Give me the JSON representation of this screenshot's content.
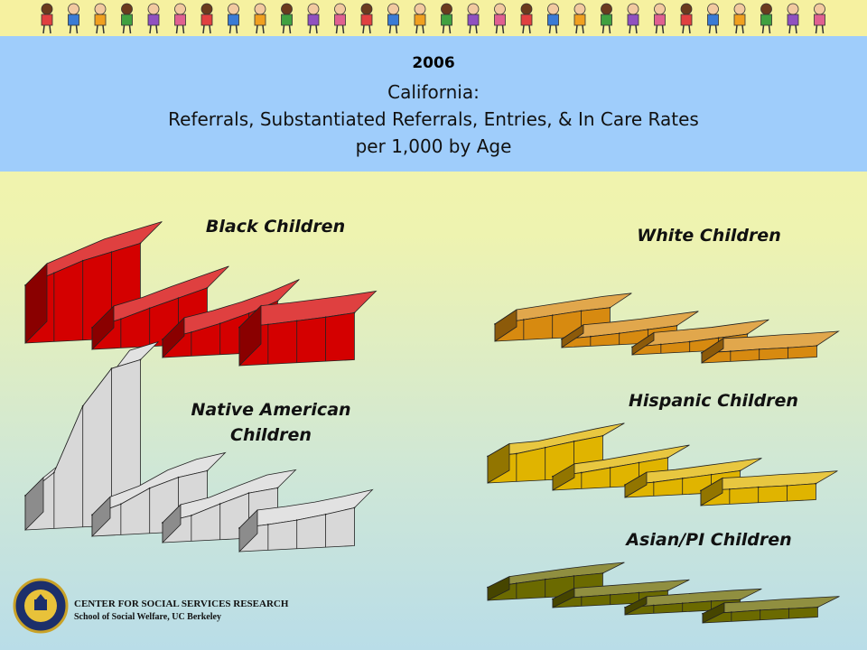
{
  "title": {
    "year": "2006",
    "line1": "California:",
    "line2": "Referrals, Substantiated Referrals, Entries, & In Care Rates",
    "line3": "per 1,000 by Age"
  },
  "footer": {
    "center": "CENTER FOR SOCIAL SERVICES RESEARCH",
    "school": "School of Social Welfare, UC Berkeley"
  },
  "colors": {
    "banner": "#f6f1a0",
    "title_band": "#9fcdfb",
    "black_children": "#d40000",
    "white_children": "#d78a10",
    "hispanic_children": "#e0b400",
    "asian_pi_children": "#6b6a00",
    "native_american_children": "#d8d8d8"
  },
  "chart_data": [
    {
      "type": "area",
      "title": "Black Children",
      "color": "#d40000",
      "series": [
        {
          "values": [
            65,
            80,
            95,
            105,
            115
          ]
        },
        {
          "values": [
            15,
            25,
            38,
            50,
            62
          ]
        },
        {
          "values": [
            10,
            18,
            28,
            40,
            55
          ]
        },
        {
          "values": [
            38,
            40,
            43,
            46,
            50
          ]
        }
      ]
    },
    {
      "type": "area",
      "title": "White Children",
      "color": "#d78a10",
      "series": [
        {
          "values": [
            20,
            25,
            30,
            35,
            38
          ]
        },
        {
          "values": [
            5,
            7,
            10,
            14,
            18
          ]
        },
        {
          "values": [
            4,
            6,
            8,
            12,
            16
          ]
        },
        {
          "values": [
            8,
            8,
            9,
            9,
            10
          ]
        }
      ]
    },
    {
      "type": "area",
      "title": "Hispanic Children",
      "color": "#e0b400",
      "series": [
        {
          "values": [
            30,
            32,
            40,
            48,
            55
          ]
        },
        {
          "values": [
            8,
            12,
            18,
            24,
            30
          ]
        },
        {
          "values": [
            6,
            8,
            12,
            16,
            20
          ]
        },
        {
          "values": [
            10,
            10,
            11,
            11,
            12
          ]
        }
      ]
    },
    {
      "type": "area",
      "title": "Asian/PI Children",
      "color": "#6b6a00",
      "series": [
        {
          "values": [
            12,
            16,
            20,
            23,
            25
          ]
        },
        {
          "values": [
            5,
            6,
            7,
            8,
            9
          ]
        },
        {
          "values": [
            3,
            4,
            5,
            6,
            6
          ]
        },
        {
          "values": [
            6,
            6,
            7,
            7,
            7
          ]
        }
      ]
    },
    {
      "type": "area",
      "title": "Native American Children",
      "color": "#d8d8d8",
      "series": [
        {
          "values": [
            30,
            60,
            150,
            200,
            210
          ]
        },
        {
          "values": [
            12,
            25,
            45,
            58,
            65
          ]
        },
        {
          "values": [
            10,
            18,
            32,
            45,
            50
          ]
        },
        {
          "values": [
            15,
            18,
            22,
            28,
            35
          ]
        }
      ]
    }
  ]
}
